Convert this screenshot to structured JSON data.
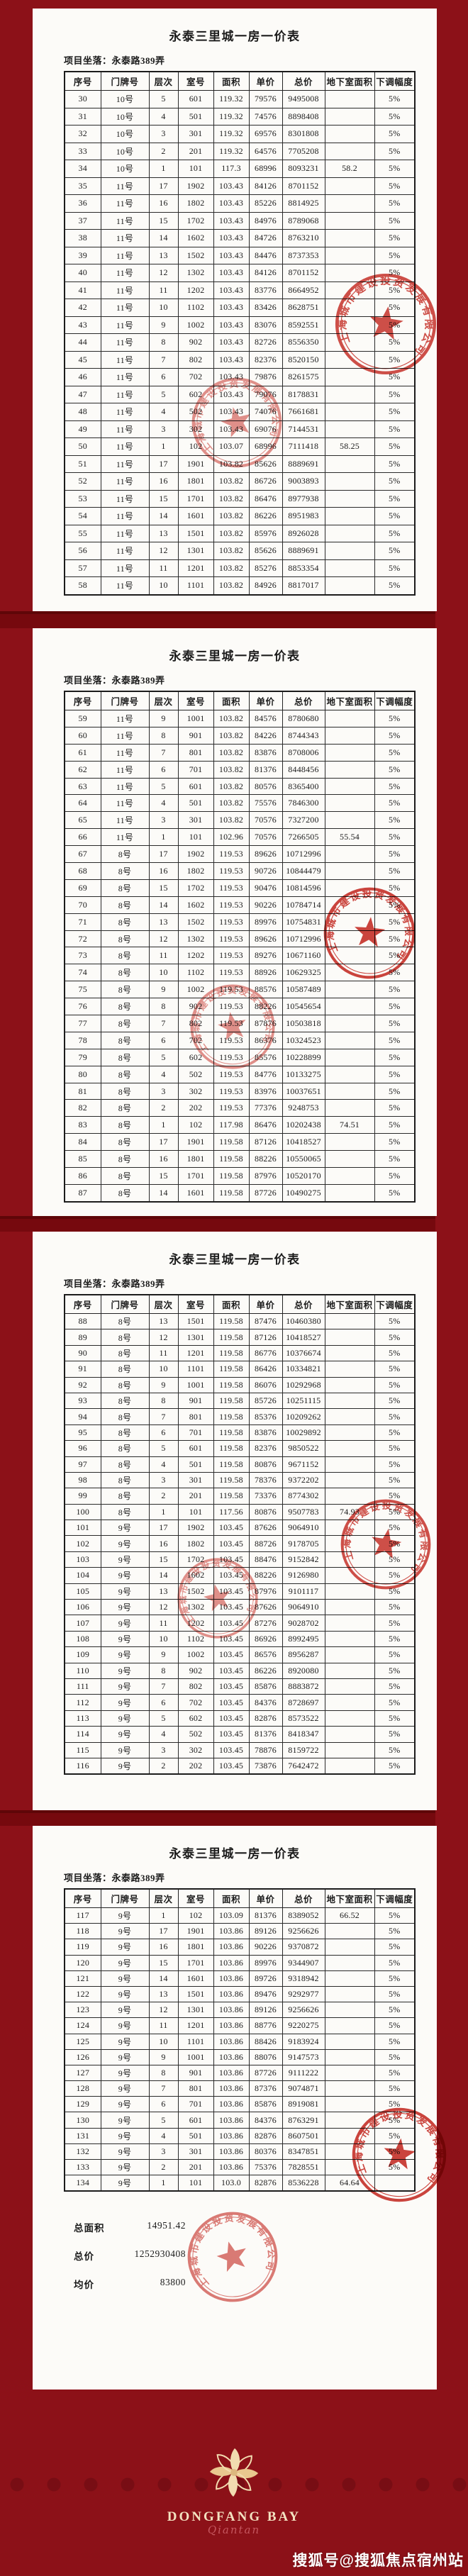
{
  "title": "永泰三里城一房一价表",
  "location": "项目坐落：永泰路389弄",
  "columns": [
    "序号",
    "门牌号",
    "层次",
    "室号",
    "面积",
    "单价",
    "总价",
    "地下室面积",
    "下调幅度"
  ],
  "pages": [
    {
      "rows": [
        [
          "30",
          "10号",
          "5",
          "601",
          "119.32",
          "79576",
          "9495008",
          "",
          "5%"
        ],
        [
          "31",
          "10号",
          "4",
          "501",
          "119.32",
          "74576",
          "8898408",
          "",
          "5%"
        ],
        [
          "32",
          "10号",
          "3",
          "301",
          "119.32",
          "69576",
          "8301808",
          "",
          "5%"
        ],
        [
          "33",
          "10号",
          "2",
          "201",
          "119.32",
          "64576",
          "7705208",
          "",
          "5%"
        ],
        [
          "34",
          "10号",
          "1",
          "101",
          "117.3",
          "68996",
          "8093231",
          "58.2",
          "5%"
        ],
        [
          "35",
          "11号",
          "17",
          "1902",
          "103.43",
          "84126",
          "8701152",
          "",
          "5%"
        ],
        [
          "36",
          "11号",
          "16",
          "1802",
          "103.43",
          "85226",
          "8814925",
          "",
          "5%"
        ],
        [
          "37",
          "11号",
          "15",
          "1702",
          "103.43",
          "84976",
          "8789068",
          "",
          "5%"
        ],
        [
          "38",
          "11号",
          "14",
          "1602",
          "103.43",
          "84726",
          "8763210",
          "",
          "5%"
        ],
        [
          "39",
          "11号",
          "13",
          "1502",
          "103.43",
          "84476",
          "8737353",
          "",
          "5%"
        ],
        [
          "40",
          "11号",
          "12",
          "1302",
          "103.43",
          "84126",
          "8701152",
          "",
          "5%"
        ],
        [
          "41",
          "11号",
          "11",
          "1202",
          "103.43",
          "83776",
          "8664952",
          "",
          "5%"
        ],
        [
          "42",
          "11号",
          "10",
          "1102",
          "103.43",
          "83426",
          "8628751",
          "",
          "5%"
        ],
        [
          "43",
          "11号",
          "9",
          "1002",
          "103.43",
          "83076",
          "8592551",
          "",
          "5%"
        ],
        [
          "44",
          "11号",
          "8",
          "902",
          "103.43",
          "82726",
          "8556350",
          "",
          "5%"
        ],
        [
          "45",
          "11号",
          "7",
          "802",
          "103.43",
          "82376",
          "8520150",
          "",
          "5%"
        ],
        [
          "46",
          "11号",
          "6",
          "702",
          "103.43",
          "79876",
          "8261575",
          "",
          "5%"
        ],
        [
          "47",
          "11号",
          "5",
          "602",
          "103.43",
          "79076",
          "8178831",
          "",
          "5%"
        ],
        [
          "48",
          "11号",
          "4",
          "502",
          "103.43",
          "74076",
          "7661681",
          "",
          "5%"
        ],
        [
          "49",
          "11号",
          "3",
          "302",
          "103.43",
          "69076",
          "7144531",
          "",
          "5%"
        ],
        [
          "50",
          "11号",
          "1",
          "102",
          "103.07",
          "68996",
          "7111418",
          "58.25",
          "5%"
        ],
        [
          "51",
          "11号",
          "17",
          "1901",
          "103.82",
          "85626",
          "8889691",
          "",
          "5%"
        ],
        [
          "52",
          "11号",
          "16",
          "1801",
          "103.82",
          "86726",
          "9003893",
          "",
          "5%"
        ],
        [
          "53",
          "11号",
          "15",
          "1701",
          "103.82",
          "86476",
          "8977938",
          "",
          "5%"
        ],
        [
          "54",
          "11号",
          "14",
          "1601",
          "103.82",
          "86226",
          "8951983",
          "",
          "5%"
        ],
        [
          "55",
          "11号",
          "13",
          "1501",
          "103.82",
          "85976",
          "8926028",
          "",
          "5%"
        ],
        [
          "56",
          "11号",
          "12",
          "1301",
          "103.82",
          "85626",
          "8889691",
          "",
          "5%"
        ],
        [
          "57",
          "11号",
          "11",
          "1201",
          "103.82",
          "85276",
          "8853354",
          "",
          "5%"
        ],
        [
          "58",
          "11号",
          "10",
          "1101",
          "103.82",
          "84926",
          "8817017",
          "",
          "5%"
        ]
      ]
    },
    {
      "rows": [
        [
          "59",
          "11号",
          "9",
          "1001",
          "103.82",
          "84576",
          "8780680",
          "",
          "5%"
        ],
        [
          "60",
          "11号",
          "8",
          "901",
          "103.82",
          "84226",
          "8744343",
          "",
          "5%"
        ],
        [
          "61",
          "11号",
          "7",
          "801",
          "103.82",
          "83876",
          "8708006",
          "",
          "5%"
        ],
        [
          "62",
          "11号",
          "6",
          "701",
          "103.82",
          "81376",
          "8448456",
          "",
          "5%"
        ],
        [
          "63",
          "11号",
          "5",
          "601",
          "103.82",
          "80576",
          "8365400",
          "",
          "5%"
        ],
        [
          "64",
          "11号",
          "4",
          "501",
          "103.82",
          "75576",
          "7846300",
          "",
          "5%"
        ],
        [
          "65",
          "11号",
          "3",
          "301",
          "103.82",
          "70576",
          "7327200",
          "",
          "5%"
        ],
        [
          "66",
          "11号",
          "1",
          "101",
          "102.96",
          "70576",
          "7266505",
          "55.54",
          "5%"
        ],
        [
          "67",
          "8号",
          "17",
          "1902",
          "119.53",
          "89626",
          "10712996",
          "",
          "5%"
        ],
        [
          "68",
          "8号",
          "16",
          "1802",
          "119.53",
          "90726",
          "10844479",
          "",
          "5%"
        ],
        [
          "69",
          "8号",
          "15",
          "1702",
          "119.53",
          "90476",
          "10814596",
          "",
          "5%"
        ],
        [
          "70",
          "8号",
          "14",
          "1602",
          "119.53",
          "90226",
          "10784714",
          "",
          "5%"
        ],
        [
          "71",
          "8号",
          "13",
          "1502",
          "119.53",
          "89976",
          "10754831",
          "",
          "5%"
        ],
        [
          "72",
          "8号",
          "12",
          "1302",
          "119.53",
          "89626",
          "10712996",
          "",
          "5%"
        ],
        [
          "73",
          "8号",
          "11",
          "1202",
          "119.53",
          "89276",
          "10671160",
          "",
          "5%"
        ],
        [
          "74",
          "8号",
          "10",
          "1102",
          "119.53",
          "88926",
          "10629325",
          "",
          "5%"
        ],
        [
          "75",
          "8号",
          "9",
          "1002",
          "119.53",
          "88576",
          "10587489",
          "",
          "5%"
        ],
        [
          "76",
          "8号",
          "8",
          "902",
          "119.53",
          "88226",
          "10545654",
          "",
          "5%"
        ],
        [
          "77",
          "8号",
          "7",
          "802",
          "119.53",
          "87876",
          "10503818",
          "",
          "5%"
        ],
        [
          "78",
          "8号",
          "6",
          "702",
          "119.53",
          "86376",
          "10324523",
          "",
          "5%"
        ],
        [
          "79",
          "8号",
          "5",
          "602",
          "119.53",
          "85576",
          "10228899",
          "",
          "5%"
        ],
        [
          "80",
          "8号",
          "4",
          "502",
          "119.53",
          "84776",
          "10133275",
          "",
          "5%"
        ],
        [
          "81",
          "8号",
          "3",
          "302",
          "119.53",
          "83976",
          "10037651",
          "",
          "5%"
        ],
        [
          "82",
          "8号",
          "2",
          "202",
          "119.53",
          "77376",
          "9248753",
          "",
          "5%"
        ],
        [
          "83",
          "8号",
          "1",
          "102",
          "117.98",
          "86476",
          "10202438",
          "74.51",
          "5%"
        ],
        [
          "84",
          "8号",
          "17",
          "1901",
          "119.58",
          "87126",
          "10418527",
          "",
          "5%"
        ],
        [
          "85",
          "8号",
          "16",
          "1801",
          "119.58",
          "88226",
          "10550065",
          "",
          "5%"
        ],
        [
          "86",
          "8号",
          "15",
          "1701",
          "119.58",
          "87976",
          "10520170",
          "",
          "5%"
        ],
        [
          "87",
          "8号",
          "14",
          "1601",
          "119.58",
          "87726",
          "10490275",
          "",
          "5%"
        ]
      ]
    },
    {
      "rows": [
        [
          "88",
          "8号",
          "13",
          "1501",
          "119.58",
          "87476",
          "10460380",
          "",
          "5%"
        ],
        [
          "89",
          "8号",
          "12",
          "1301",
          "119.58",
          "87126",
          "10418527",
          "",
          "5%"
        ],
        [
          "90",
          "8号",
          "11",
          "1201",
          "119.58",
          "86776",
          "10376674",
          "",
          "5%"
        ],
        [
          "91",
          "8号",
          "10",
          "1101",
          "119.58",
          "86426",
          "10334821",
          "",
          "5%"
        ],
        [
          "92",
          "8号",
          "9",
          "1001",
          "119.58",
          "86076",
          "10292968",
          "",
          "5%"
        ],
        [
          "93",
          "8号",
          "8",
          "901",
          "119.58",
          "85726",
          "10251115",
          "",
          "5%"
        ],
        [
          "94",
          "8号",
          "7",
          "801",
          "119.58",
          "85376",
          "10209262",
          "",
          "5%"
        ],
        [
          "95",
          "8号",
          "6",
          "701",
          "119.58",
          "83876",
          "10029892",
          "",
          "5%"
        ],
        [
          "96",
          "8号",
          "5",
          "601",
          "119.58",
          "82376",
          "9850522",
          "",
          "5%"
        ],
        [
          "97",
          "8号",
          "4",
          "501",
          "119.58",
          "80876",
          "9671152",
          "",
          "5%"
        ],
        [
          "98",
          "8号",
          "3",
          "301",
          "119.58",
          "78376",
          "9372202",
          "",
          "5%"
        ],
        [
          "99",
          "8号",
          "2",
          "201",
          "119.58",
          "73376",
          "8774302",
          "",
          "5%"
        ],
        [
          "100",
          "8号",
          "1",
          "101",
          "117.56",
          "80876",
          "9507783",
          "74.93",
          "5%"
        ],
        [
          "101",
          "9号",
          "17",
          "1902",
          "103.45",
          "87626",
          "9064910",
          "",
          "5%"
        ],
        [
          "102",
          "9号",
          "16",
          "1802",
          "103.45",
          "88726",
          "9178705",
          "",
          "5%"
        ],
        [
          "103",
          "9号",
          "15",
          "1702",
          "103.45",
          "88476",
          "9152842",
          "",
          "5%"
        ],
        [
          "104",
          "9号",
          "14",
          "1602",
          "103.45",
          "88226",
          "9126980",
          "",
          "5%"
        ],
        [
          "105",
          "9号",
          "13",
          "1502",
          "103.45",
          "87976",
          "9101117",
          "",
          "5%"
        ],
        [
          "106",
          "9号",
          "12",
          "1302",
          "103.45",
          "87626",
          "9064910",
          "",
          "5%"
        ],
        [
          "107",
          "9号",
          "11",
          "1202",
          "103.45",
          "87276",
          "9028702",
          "",
          "5%"
        ],
        [
          "108",
          "9号",
          "10",
          "1102",
          "103.45",
          "86926",
          "8992495",
          "",
          "5%"
        ],
        [
          "109",
          "9号",
          "9",
          "1002",
          "103.45",
          "86576",
          "8956287",
          "",
          "5%"
        ],
        [
          "110",
          "9号",
          "8",
          "902",
          "103.45",
          "86226",
          "8920080",
          "",
          "5%"
        ],
        [
          "111",
          "9号",
          "7",
          "802",
          "103.45",
          "85876",
          "8883872",
          "",
          "5%"
        ],
        [
          "112",
          "9号",
          "6",
          "702",
          "103.45",
          "84376",
          "8728697",
          "",
          "5%"
        ],
        [
          "113",
          "9号",
          "5",
          "602",
          "103.45",
          "82876",
          "8573522",
          "",
          "5%"
        ],
        [
          "114",
          "9号",
          "4",
          "502",
          "103.45",
          "81376",
          "8418347",
          "",
          "5%"
        ],
        [
          "115",
          "9号",
          "3",
          "302",
          "103.45",
          "78876",
          "8159722",
          "",
          "5%"
        ],
        [
          "116",
          "9号",
          "2",
          "202",
          "103.45",
          "73876",
          "7642472",
          "",
          "5%"
        ]
      ]
    },
    {
      "rows": [
        [
          "117",
          "9号",
          "1",
          "102",
          "103.09",
          "81376",
          "8389052",
          "66.52",
          "5%"
        ],
        [
          "118",
          "9号",
          "17",
          "1901",
          "103.86",
          "89126",
          "9256626",
          "",
          "5%"
        ],
        [
          "119",
          "9号",
          "16",
          "1801",
          "103.86",
          "90226",
          "9370872",
          "",
          "5%"
        ],
        [
          "120",
          "9号",
          "15",
          "1701",
          "103.86",
          "89976",
          "9344907",
          "",
          "5%"
        ],
        [
          "121",
          "9号",
          "14",
          "1601",
          "103.86",
          "89726",
          "9318942",
          "",
          "5%"
        ],
        [
          "122",
          "9号",
          "13",
          "1501",
          "103.86",
          "89476",
          "9292977",
          "",
          "5%"
        ],
        [
          "123",
          "9号",
          "12",
          "1301",
          "103.86",
          "89126",
          "9256626",
          "",
          "5%"
        ],
        [
          "124",
          "9号",
          "11",
          "1201",
          "103.86",
          "88776",
          "9220275",
          "",
          "5%"
        ],
        [
          "125",
          "9号",
          "10",
          "1101",
          "103.86",
          "88426",
          "9183924",
          "",
          "5%"
        ],
        [
          "126",
          "9号",
          "9",
          "1001",
          "103.86",
          "88076",
          "9147573",
          "",
          "5%"
        ],
        [
          "127",
          "9号",
          "8",
          "901",
          "103.86",
          "87726",
          "9111222",
          "",
          "5%"
        ],
        [
          "128",
          "9号",
          "7",
          "801",
          "103.86",
          "87376",
          "9074871",
          "",
          "5%"
        ],
        [
          "129",
          "9号",
          "6",
          "701",
          "103.86",
          "85876",
          "8919081",
          "",
          "5%"
        ],
        [
          "130",
          "9号",
          "5",
          "601",
          "103.86",
          "84376",
          "8763291",
          "",
          "5%"
        ],
        [
          "131",
          "9号",
          "4",
          "501",
          "103.86",
          "82876",
          "8607501",
          "",
          "5%"
        ],
        [
          "132",
          "9号",
          "3",
          "301",
          "103.86",
          "80376",
          "8347851",
          "",
          "5%"
        ],
        [
          "133",
          "9号",
          "2",
          "201",
          "103.86",
          "75376",
          "7828551",
          "",
          "5%"
        ],
        [
          "134",
          "9号",
          "1",
          "101",
          "103.0",
          "82876",
          "8536228",
          "64.64",
          ""
        ]
      ]
    }
  ],
  "summary": {
    "items": [
      {
        "label": "总面积",
        "value": "14951.42"
      },
      {
        "label": "总价",
        "value": "1252930408"
      },
      {
        "label": "均价",
        "value": "83800"
      }
    ]
  },
  "stamp": {
    "ring_text": "上海城市建设投资发展有限公司"
  },
  "footer": {
    "logo_title": "DONGFANG BAY",
    "logo_subtitle": "Qiantan"
  },
  "watermark": "搜狐号@搜狐焦点宿州站",
  "colors": {
    "background": "#8c1118",
    "gap_band": "#76090e",
    "page": "#fcfbf8",
    "stamp_red": "#c5241c",
    "logo_gold": "#f3e1c0"
  }
}
